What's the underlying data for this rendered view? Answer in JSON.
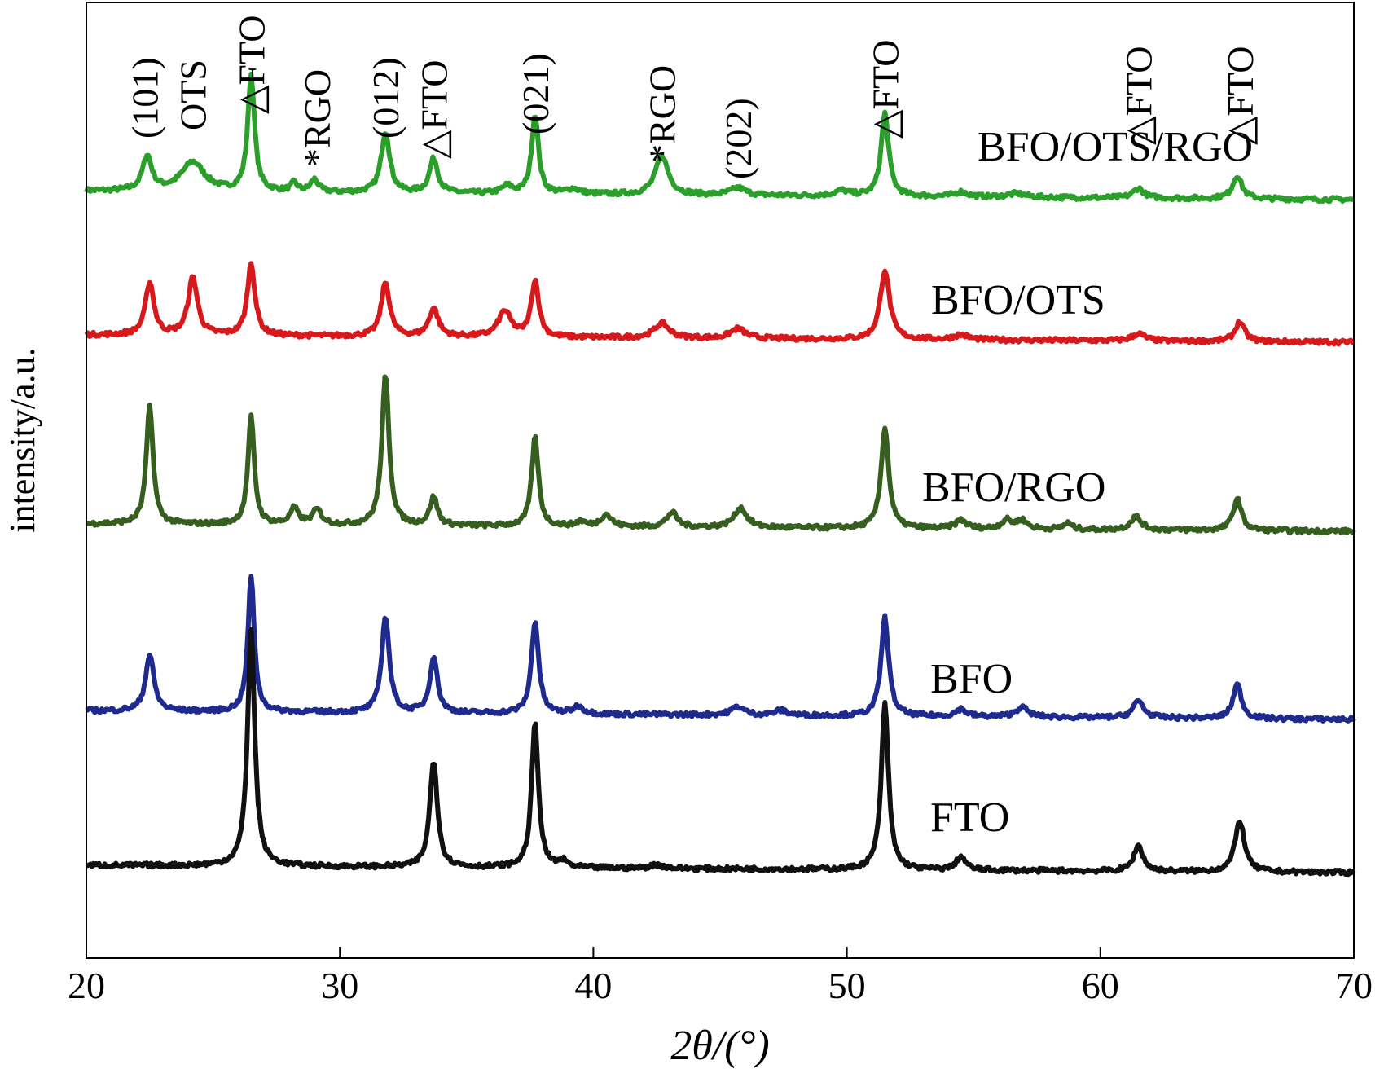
{
  "chart_data": {
    "type": "line",
    "xlabel": "2θ/(°)",
    "ylabel": "intensity/a.u.",
    "xlim": [
      20,
      70
    ],
    "xticks": [
      20,
      30,
      40,
      50,
      60,
      70
    ],
    "grid": false,
    "legend": "inline-labels-right",
    "series": [
      {
        "name": "BFO/OTS/RGO",
        "color": "#2a9f2a",
        "baseline_start": 0.34,
        "baseline_end": 0.27,
        "peaks": [
          [
            22.4,
            0.28,
            0.22
          ],
          [
            24.2,
            0.24,
            0.55
          ],
          [
            26.5,
            0.95,
            0.16
          ],
          [
            28.2,
            0.07,
            0.15
          ],
          [
            29.0,
            0.1,
            0.18
          ],
          [
            31.8,
            0.5,
            0.2
          ],
          [
            33.7,
            0.28,
            0.2
          ],
          [
            36.6,
            0.06,
            0.25
          ],
          [
            37.7,
            0.65,
            0.16
          ],
          [
            39.2,
            0.04,
            0.3
          ],
          [
            42.7,
            0.32,
            0.3
          ],
          [
            45.7,
            0.06,
            0.35
          ],
          [
            49.8,
            0.04,
            0.35
          ],
          [
            51.5,
            0.68,
            0.18
          ],
          [
            54.5,
            0.04,
            0.3
          ],
          [
            56.7,
            0.03,
            0.4
          ],
          [
            61.5,
            0.08,
            0.25
          ],
          [
            65.4,
            0.19,
            0.22
          ]
        ]
      },
      {
        "name": "BFO/OTS",
        "color": "#d7191c",
        "baseline_start": 0.27,
        "baseline_end": 0.21,
        "peaks": [
          [
            22.5,
            0.43,
            0.2
          ],
          [
            24.2,
            0.47,
            0.22
          ],
          [
            26.5,
            0.59,
            0.18
          ],
          [
            31.8,
            0.44,
            0.2
          ],
          [
            33.7,
            0.23,
            0.22
          ],
          [
            36.5,
            0.21,
            0.3
          ],
          [
            37.7,
            0.46,
            0.18
          ],
          [
            42.7,
            0.12,
            0.35
          ],
          [
            45.7,
            0.08,
            0.35
          ],
          [
            51.5,
            0.57,
            0.22
          ],
          [
            54.5,
            0.04,
            0.35
          ],
          [
            61.5,
            0.06,
            0.3
          ],
          [
            65.5,
            0.16,
            0.22
          ]
        ]
      },
      {
        "name": "BFO/RGO",
        "color": "#355e1f",
        "baseline_start": 0.46,
        "baseline_end": 0.4,
        "peaks": [
          [
            22.5,
            0.96,
            0.16
          ],
          [
            26.5,
            0.88,
            0.15
          ],
          [
            28.2,
            0.13,
            0.2
          ],
          [
            29.1,
            0.12,
            0.22
          ],
          [
            31.8,
            1.22,
            0.17
          ],
          [
            33.7,
            0.23,
            0.18
          ],
          [
            37.7,
            0.73,
            0.16
          ],
          [
            39.5,
            0.04,
            0.2
          ],
          [
            40.5,
            0.1,
            0.25
          ],
          [
            43.1,
            0.12,
            0.25
          ],
          [
            45.8,
            0.16,
            0.3
          ],
          [
            51.5,
            0.83,
            0.18
          ],
          [
            54.5,
            0.07,
            0.25
          ],
          [
            56.3,
            0.07,
            0.25
          ],
          [
            56.9,
            0.07,
            0.25
          ],
          [
            58.7,
            0.05,
            0.2
          ],
          [
            61.4,
            0.11,
            0.25
          ],
          [
            65.4,
            0.26,
            0.2
          ]
        ]
      },
      {
        "name": "BFO",
        "color": "#1f2a8f",
        "baseline_start": 0.75,
        "baseline_end": 0.68,
        "peaks": [
          [
            22.5,
            0.46,
            0.2
          ],
          [
            26.5,
            1.11,
            0.15
          ],
          [
            31.8,
            0.79,
            0.18
          ],
          [
            33.7,
            0.46,
            0.18
          ],
          [
            37.7,
            0.76,
            0.17
          ],
          [
            39.4,
            0.06,
            0.25
          ],
          [
            45.7,
            0.07,
            0.3
          ],
          [
            47.4,
            0.04,
            0.3
          ],
          [
            51.5,
            0.81,
            0.18
          ],
          [
            54.5,
            0.06,
            0.25
          ],
          [
            56.9,
            0.08,
            0.3
          ],
          [
            61.5,
            0.14,
            0.25
          ],
          [
            65.4,
            0.28,
            0.2
          ]
        ]
      },
      {
        "name": "FTO",
        "color": "#111111",
        "baseline_start": 0.49,
        "baseline_end": 0.43,
        "peaks": [
          [
            26.5,
            1.94,
            0.17
          ],
          [
            33.7,
            0.87,
            0.18
          ],
          [
            37.7,
            1.19,
            0.16
          ],
          [
            38.8,
            0.05,
            0.2
          ],
          [
            42.5,
            0.03,
            0.3
          ],
          [
            51.5,
            1.36,
            0.17
          ],
          [
            54.5,
            0.11,
            0.22
          ],
          [
            61.5,
            0.21,
            0.22
          ],
          [
            65.5,
            0.42,
            0.22
          ]
        ]
      }
    ],
    "annotations": [
      {
        "text": "(101)",
        "x": 22.3
      },
      {
        "text": "OTS",
        "x": 24.2
      },
      {
        "text": "△FTO",
        "x": 26.5
      },
      {
        "text": "*RGO",
        "x": 29.1
      },
      {
        "text": "(012)",
        "x": 31.8
      },
      {
        "text": "△FTO",
        "x": 33.7
      },
      {
        "text": "(021)",
        "x": 37.7
      },
      {
        "text": "*RGO",
        "x": 42.7
      },
      {
        "text": "(202)",
        "x": 45.7
      },
      {
        "text": "△FTO",
        "x": 51.5
      },
      {
        "text": "△FTO",
        "x": 61.5
      },
      {
        "text": "△FTO",
        "x": 65.5
      }
    ]
  }
}
